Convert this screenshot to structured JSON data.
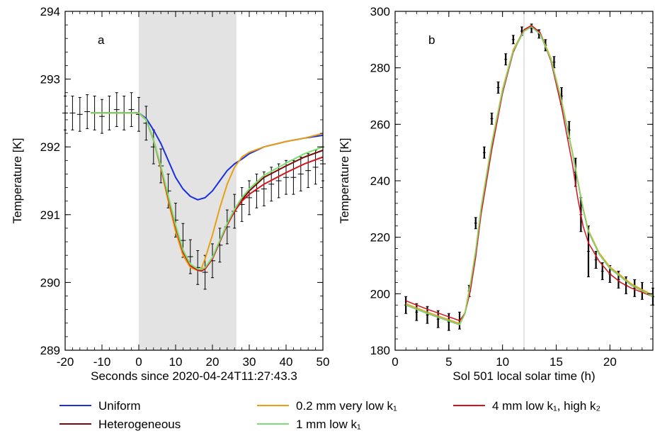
{
  "chart_data": [
    {
      "type": "line",
      "panel_label": "a",
      "xlabel": "Seconds since 2020-04-24T11:27:43.3",
      "ylabel": "Temperature [K]",
      "xlim": [
        -20,
        50
      ],
      "ylim": [
        289,
        294
      ],
      "xticks": [
        -20,
        -10,
        0,
        10,
        20,
        30,
        40,
        50
      ],
      "yticks": [
        289,
        290,
        291,
        292,
        293,
        294
      ],
      "shaded_interval": [
        0,
        26.5
      ],
      "grid": false,
      "measurements": {
        "x": [
          -20,
          -18,
          -16,
          -14,
          -12,
          -10,
          -8,
          -6,
          -4,
          -2,
          0,
          2,
          4,
          6,
          8,
          10,
          12,
          14,
          16,
          18,
          20,
          22,
          24,
          26,
          28,
          30,
          32,
          34,
          36,
          38,
          40,
          42,
          44,
          46,
          48,
          50
        ],
        "y": [
          292.5,
          292.5,
          292.48,
          292.52,
          292.5,
          292.45,
          292.5,
          292.55,
          292.5,
          292.55,
          292.48,
          292.35,
          292.0,
          291.72,
          291.35,
          290.92,
          290.62,
          290.38,
          290.22,
          290.15,
          290.32,
          290.55,
          290.82,
          291.05,
          291.15,
          291.25,
          291.35,
          291.38,
          291.45,
          291.5,
          291.55,
          291.55,
          291.6,
          291.65,
          291.7,
          291.75
        ],
        "err": [
          0.25,
          0.25,
          0.25,
          0.25,
          0.25,
          0.25,
          0.25,
          0.25,
          0.25,
          0.25,
          0.25,
          0.25,
          0.25,
          0.25,
          0.25,
          0.25,
          0.25,
          0.25,
          0.25,
          0.25,
          0.25,
          0.25,
          0.25,
          0.25,
          0.25,
          0.25,
          0.25,
          0.25,
          0.25,
          0.25,
          0.25,
          0.25,
          0.25,
          0.25,
          0.25,
          0.25
        ]
      },
      "series": [
        {
          "name": "Uniform",
          "color": "#1a2fe0",
          "x": [
            -13,
            -4,
            0,
            2,
            4,
            6,
            8,
            10,
            12,
            14,
            16,
            18,
            20,
            22,
            24,
            26,
            28,
            30,
            34,
            40,
            45,
            50
          ],
          "y": [
            292.5,
            292.5,
            292.5,
            292.42,
            292.25,
            292.05,
            291.8,
            291.55,
            291.38,
            291.27,
            291.22,
            291.25,
            291.35,
            291.5,
            291.65,
            291.75,
            291.82,
            291.9,
            292.0,
            292.08,
            292.13,
            292.17
          ]
        },
        {
          "name": "Heterogeneous",
          "color": "#7a0a0a",
          "x": [
            -13,
            -4,
            0,
            2,
            4,
            6,
            8,
            10,
            12,
            14,
            16,
            17,
            18,
            20,
            22,
            24,
            26,
            28,
            30,
            34,
            40,
            45,
            50
          ],
          "y": [
            292.5,
            292.5,
            292.5,
            292.4,
            292.1,
            291.7,
            291.25,
            290.82,
            290.45,
            290.25,
            290.18,
            290.17,
            290.2,
            290.35,
            290.6,
            290.85,
            291.05,
            291.22,
            291.35,
            291.55,
            291.72,
            291.85,
            291.95
          ]
        },
        {
          "name": "0.2 mm very low k₁",
          "color": "#e8a012",
          "x": [
            -13,
            -4,
            0,
            2,
            4,
            6,
            8,
            10,
            12,
            14,
            16,
            17,
            18,
            20,
            22,
            24,
            26,
            28,
            30,
            34,
            40,
            45,
            50
          ],
          "y": [
            292.5,
            292.5,
            292.5,
            292.4,
            292.1,
            291.68,
            291.2,
            290.75,
            290.4,
            290.22,
            290.18,
            290.2,
            290.35,
            290.7,
            291.1,
            291.45,
            291.7,
            291.85,
            291.92,
            292.0,
            292.08,
            292.13,
            292.2
          ]
        },
        {
          "name": "4 mm low k₁, high k₂",
          "color": "#d8121c",
          "x": [
            -13,
            -4,
            0,
            2,
            4,
            6,
            8,
            10,
            12,
            14,
            16,
            17,
            18,
            20,
            22,
            24,
            26,
            28,
            30,
            34,
            40,
            45,
            50
          ],
          "y": [
            292.5,
            292.5,
            292.5,
            292.4,
            292.1,
            291.7,
            291.25,
            290.82,
            290.45,
            290.25,
            290.18,
            290.17,
            290.2,
            290.35,
            290.6,
            290.85,
            291.05,
            291.2,
            291.3,
            291.45,
            291.62,
            291.75,
            291.85
          ]
        },
        {
          "name": "1 mm low k₁",
          "color": "#78e070",
          "x": [
            -13,
            -4,
            0,
            2,
            4,
            6,
            8,
            10,
            12,
            14,
            16,
            17,
            18,
            20,
            22,
            24,
            26,
            28,
            30,
            34,
            40,
            45,
            50
          ],
          "y": [
            292.5,
            292.5,
            292.5,
            292.4,
            292.1,
            291.72,
            291.28,
            290.85,
            290.48,
            290.27,
            290.2,
            290.19,
            290.22,
            290.37,
            290.62,
            290.87,
            291.08,
            291.25,
            291.38,
            291.58,
            291.76,
            291.9,
            292.0
          ]
        }
      ]
    },
    {
      "type": "line",
      "panel_label": "b",
      "xlabel": "Sol 501 local solar time (h)",
      "ylabel": "Temperature [K]",
      "xlim": [
        0,
        24
      ],
      "ylim": [
        180,
        300
      ],
      "xticks": [
        0,
        5,
        10,
        15,
        20
      ],
      "yticks": [
        180,
        200,
        220,
        240,
        260,
        280,
        300
      ],
      "vertical_line_x": 12,
      "grid": false,
      "measurements": {
        "x": [
          1,
          2,
          3,
          4,
          5,
          6,
          6.9,
          7.5,
          8.3,
          9,
          9.6,
          10.3,
          11,
          11.8,
          12.7,
          13.4,
          14,
          14.8,
          15.5,
          16.2,
          16.8,
          17.3,
          18,
          18.7,
          19.3,
          20,
          20.8,
          21.5,
          22.3,
          23,
          24
        ],
        "y": [
          196,
          193.5,
          192.5,
          191,
          190,
          190.5,
          201,
          225,
          250,
          262,
          273,
          283,
          290,
          293,
          294,
          292,
          288,
          282,
          270,
          258,
          243,
          228,
          215,
          212,
          208,
          207,
          205,
          203,
          202,
          201,
          199
        ],
        "err": [
          3,
          3,
          3,
          3,
          3,
          3,
          2,
          2,
          2,
          2,
          2,
          2,
          1.5,
          1.5,
          1.5,
          1.5,
          2,
          2,
          3,
          3,
          5,
          6,
          9,
          3,
          3,
          3,
          3,
          3,
          3,
          3,
          3
        ]
      },
      "series": [
        {
          "name": "Uniform",
          "color": "#1a2fe0",
          "x": [
            1,
            3,
            6,
            6.5,
            7,
            7.5,
            8,
            9,
            10,
            11,
            12,
            12.7,
            13.5,
            14.5,
            15.5,
            16.5,
            17,
            17.5,
            18,
            19,
            20,
            21,
            22,
            23,
            24
          ],
          "y": [
            196,
            193,
            189,
            193,
            203,
            215,
            230,
            253,
            272,
            286,
            293,
            294.5,
            292,
            283,
            268,
            250,
            240,
            230,
            222,
            214,
            209,
            206,
            203,
            201,
            199
          ]
        },
        {
          "name": "Heterogeneous",
          "color": "#7a0a0a",
          "x": [
            1,
            3,
            6,
            6.5,
            7,
            7.5,
            8,
            9,
            10,
            11,
            12,
            12.7,
            13.5,
            14.5,
            15.5,
            16.5,
            17,
            17.5,
            18,
            19,
            20,
            21,
            22,
            23,
            24
          ],
          "y": [
            196,
            193,
            189,
            193,
            203,
            215,
            230,
            253,
            272,
            286,
            293,
            294.5,
            292,
            283,
            268,
            250,
            240,
            230,
            222,
            214,
            209,
            206,
            203,
            201,
            199
          ]
        },
        {
          "name": "0.2 mm very low k₁",
          "color": "#e8a012",
          "x": [
            1,
            3,
            6,
            6.5,
            7,
            7.5,
            8,
            9,
            10,
            11,
            12,
            12.7,
            13.5,
            14.5,
            15.5,
            16.5,
            17,
            17.5,
            18,
            19,
            20,
            21,
            22,
            23,
            24
          ],
          "y": [
            196.5,
            193.5,
            189.5,
            193.5,
            203.5,
            215.5,
            230.5,
            253.5,
            272.5,
            286.5,
            293.5,
            295,
            292.5,
            283.5,
            268.5,
            250.5,
            240.5,
            230.5,
            222.5,
            214.5,
            209.5,
            206.5,
            203.5,
            201.5,
            199.5
          ]
        },
        {
          "name": "4 mm low k₁, high k₂",
          "color": "#d8121c",
          "x": [
            1,
            3,
            6,
            6.5,
            7,
            7.5,
            8,
            9,
            10,
            11,
            12,
            12.7,
            13.5,
            14.5,
            15.5,
            16.5,
            17,
            17.5,
            18,
            19,
            20,
            21,
            22,
            23,
            24
          ],
          "y": [
            197.5,
            194.5,
            190.5,
            193,
            201,
            213,
            228,
            251,
            271,
            285.5,
            293.5,
            295,
            292.5,
            282.5,
            266,
            246,
            234,
            224,
            218,
            211.5,
            207,
            204,
            202,
            200.5,
            199
          ]
        },
        {
          "name": "1 mm low k₁",
          "color": "#78e070",
          "x": [
            1,
            3,
            6,
            6.5,
            7,
            7.5,
            8,
            9,
            10,
            11,
            12,
            12.7,
            13.5,
            14.5,
            15.5,
            16.5,
            17,
            17.5,
            18,
            19,
            20,
            21,
            22,
            23,
            24
          ],
          "y": [
            196,
            193,
            189,
            193,
            203,
            215,
            230,
            253,
            272,
            286,
            293,
            294.5,
            292,
            283,
            268,
            250,
            240,
            230,
            222,
            214,
            209,
            206,
            203,
            201,
            199
          ]
        }
      ]
    }
  ],
  "legend": {
    "placement": "bottom",
    "items": [
      {
        "label": "Uniform",
        "color": "#1a2fe0"
      },
      {
        "label": "0.2 mm very low k₁",
        "color": "#e8a012"
      },
      {
        "label": "4 mm low k₁, high k₂",
        "color": "#d8121c"
      },
      {
        "label": "Heterogeneous",
        "color": "#7a0a0a"
      },
      {
        "label": "1 mm low k₁",
        "color": "#78e070"
      }
    ]
  }
}
